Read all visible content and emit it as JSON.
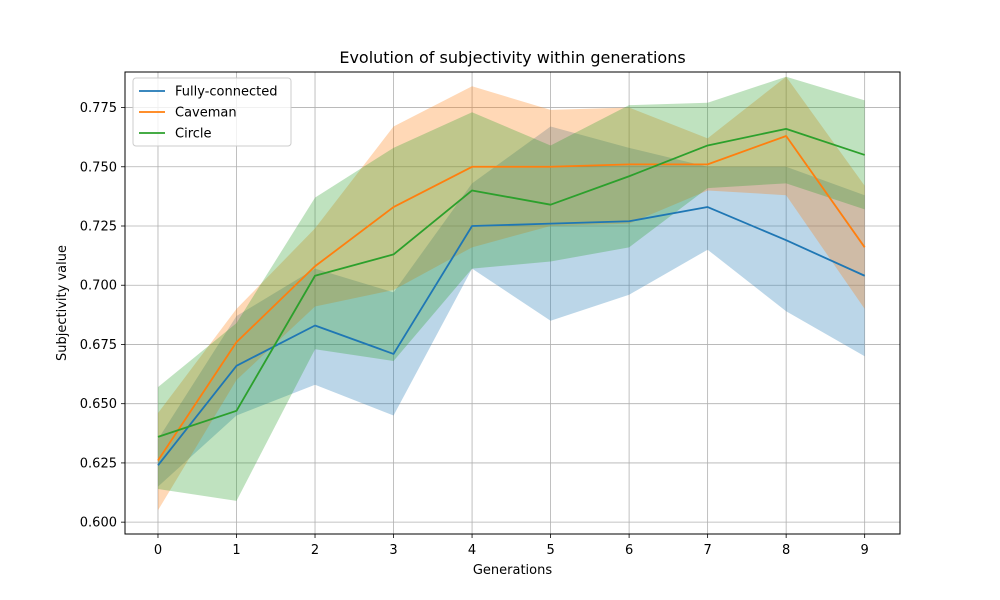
{
  "chart_data": {
    "type": "line",
    "title": "Evolution of subjectivity within generations",
    "xlabel": "Generations",
    "ylabel": "Subjectivity value",
    "x": [
      0,
      1,
      2,
      3,
      4,
      5,
      6,
      7,
      8,
      9
    ],
    "xlim": [
      -0.42,
      9.45
    ],
    "ylim": [
      0.595,
      0.79
    ],
    "yticks": [
      0.6,
      0.625,
      0.65,
      0.675,
      0.7,
      0.725,
      0.75,
      0.775
    ],
    "ytick_labels": [
      "0.600",
      "0.625",
      "0.650",
      "0.675",
      "0.700",
      "0.725",
      "0.750",
      "0.775"
    ],
    "xtick_labels": [
      "0",
      "1",
      "2",
      "3",
      "4",
      "5",
      "6",
      "7",
      "8",
      "9"
    ],
    "grid": true,
    "legend_position": "top-left",
    "series": [
      {
        "name": "Fully-connected",
        "color": "#1f77b4",
        "values": [
          0.624,
          0.666,
          0.683,
          0.671,
          0.725,
          0.726,
          0.727,
          0.733,
          0.719,
          0.704
        ],
        "lower": [
          0.615,
          0.645,
          0.658,
          0.645,
          0.707,
          0.685,
          0.696,
          0.715,
          0.689,
          0.67
        ],
        "upper": [
          0.635,
          0.687,
          0.707,
          0.697,
          0.743,
          0.767,
          0.758,
          0.75,
          0.75,
          0.738
        ]
      },
      {
        "name": "Caveman",
        "color": "#ff7f0e",
        "values": [
          0.626,
          0.676,
          0.708,
          0.733,
          0.75,
          0.75,
          0.751,
          0.751,
          0.763,
          0.716
        ],
        "lower": [
          0.605,
          0.66,
          0.691,
          0.698,
          0.716,
          0.725,
          0.726,
          0.74,
          0.738,
          0.69
        ],
        "upper": [
          0.646,
          0.69,
          0.724,
          0.767,
          0.784,
          0.774,
          0.775,
          0.762,
          0.788,
          0.742
        ]
      },
      {
        "name": "Circle",
        "color": "#2ca02c",
        "values": [
          0.636,
          0.647,
          0.704,
          0.713,
          0.74,
          0.734,
          0.746,
          0.759,
          0.766,
          0.755
        ],
        "lower": [
          0.614,
          0.609,
          0.673,
          0.668,
          0.707,
          0.71,
          0.716,
          0.741,
          0.743,
          0.732
        ],
        "upper": [
          0.657,
          0.684,
          0.737,
          0.758,
          0.773,
          0.759,
          0.776,
          0.777,
          0.788,
          0.778
        ]
      }
    ]
  }
}
